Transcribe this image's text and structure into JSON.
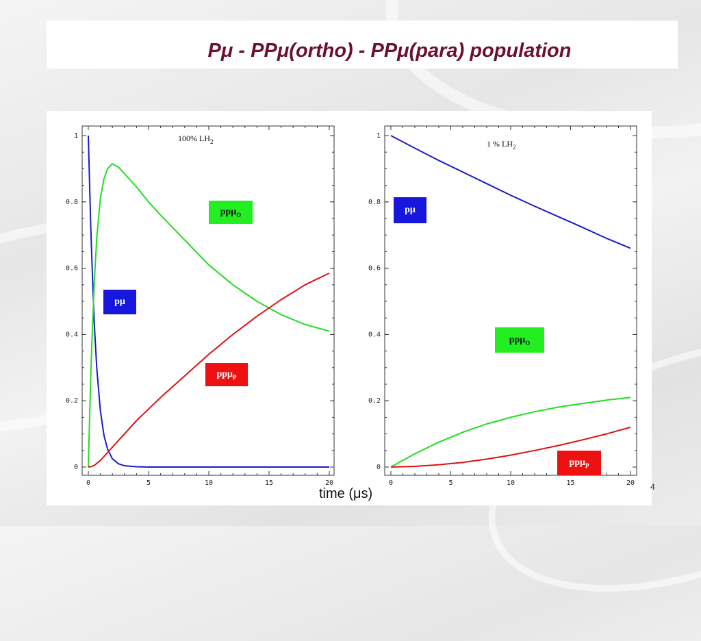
{
  "slide": {
    "title": "Pμ - PPμ(ortho) - PPμ(para)  population",
    "xlabel_prefix": "time (",
    "xlabel_unit": "μs",
    "xlabel_suffix": ")",
    "page_number": "4"
  },
  "chart_data": [
    {
      "type": "line",
      "title": "",
      "annotation": {
        "text": "100% LH",
        "sub": "2"
      },
      "xlim": [
        0,
        20
      ],
      "ylim": [
        0,
        1
      ],
      "xticks": [
        "0",
        "5",
        "10",
        "15",
        "20"
      ],
      "yticks": [
        "0",
        "0.2",
        "0.4",
        "0.6",
        "0.8",
        "1"
      ],
      "series": [
        {
          "color": "#1a1acc",
          "x": [
            0,
            0.1,
            0.2,
            0.3,
            0.5,
            0.7,
            1.0,
            1.3,
            1.6,
            2.0,
            2.5,
            3.0,
            4.0,
            5.0,
            10,
            15,
            20
          ],
          "y": [
            1.0,
            0.86,
            0.73,
            0.62,
            0.43,
            0.3,
            0.17,
            0.095,
            0.054,
            0.025,
            0.01,
            0.004,
            0.001,
            0,
            0,
            0,
            0
          ]
        },
        {
          "color": "#22dd22",
          "x": [
            0,
            0.1,
            0.2,
            0.3,
            0.5,
            0.7,
            1.0,
            1.3,
            1.6,
            2.0,
            2.5,
            3.0,
            4.0,
            5.0,
            6.0,
            8.0,
            10.0,
            12.0,
            14.0,
            16.0,
            18.0,
            20.0
          ],
          "y": [
            0,
            0.14,
            0.27,
            0.38,
            0.56,
            0.69,
            0.81,
            0.87,
            0.9,
            0.915,
            0.905,
            0.885,
            0.845,
            0.8,
            0.76,
            0.685,
            0.61,
            0.55,
            0.5,
            0.46,
            0.43,
            0.41
          ]
        },
        {
          "color": "#dd1111",
          "x": [
            0,
            0.3,
            0.5,
            1.0,
            2.0,
            3.0,
            4.0,
            5.0,
            6.0,
            8.0,
            10.0,
            12.0,
            14.0,
            16.0,
            18.0,
            20.0
          ],
          "y": [
            0,
            0.002,
            0.005,
            0.02,
            0.06,
            0.1,
            0.14,
            0.175,
            0.21,
            0.275,
            0.34,
            0.4,
            0.455,
            0.505,
            0.55,
            0.585
          ]
        }
      ],
      "labels": [
        {
          "text": "ppμ",
          "sub": "O",
          "style": "green"
        },
        {
          "text": "pμ",
          "sub": "",
          "style": "blue"
        },
        {
          "text": "ppμ",
          "sub": "P",
          "style": "red"
        }
      ]
    },
    {
      "type": "line",
      "title": "",
      "annotation": {
        "text": "1 % LH",
        "sub": "2"
      },
      "xlim": [
        0,
        20
      ],
      "ylim": [
        0,
        1
      ],
      "xticks": [
        "0",
        "5",
        "10",
        "15",
        "20"
      ],
      "yticks": [
        "0",
        "0.2",
        "0.4",
        "0.6",
        "0.8",
        "1"
      ],
      "series": [
        {
          "color": "#1a1acc",
          "x": [
            0,
            2,
            4,
            6,
            8,
            10,
            12,
            14,
            16,
            18,
            20
          ],
          "y": [
            1.0,
            0.962,
            0.925,
            0.89,
            0.855,
            0.82,
            0.787,
            0.755,
            0.723,
            0.69,
            0.66
          ]
        },
        {
          "color": "#22dd22",
          "x": [
            0,
            2,
            4,
            6,
            8,
            10,
            12,
            14,
            16,
            18,
            20
          ],
          "y": [
            0,
            0.04,
            0.075,
            0.105,
            0.13,
            0.15,
            0.167,
            0.181,
            0.192,
            0.202,
            0.21
          ]
        },
        {
          "color": "#dd1111",
          "x": [
            0,
            2,
            4,
            6,
            8,
            10,
            12,
            14,
            16,
            18,
            20
          ],
          "y": [
            0,
            0.002,
            0.007,
            0.014,
            0.024,
            0.036,
            0.05,
            0.065,
            0.082,
            0.1,
            0.12
          ]
        }
      ],
      "labels": [
        {
          "text": "pμ",
          "sub": "",
          "style": "blue"
        },
        {
          "text": "ppμ",
          "sub": "O",
          "style": "green"
        },
        {
          "text": "ppμ",
          "sub": "P",
          "style": "red"
        }
      ]
    }
  ]
}
